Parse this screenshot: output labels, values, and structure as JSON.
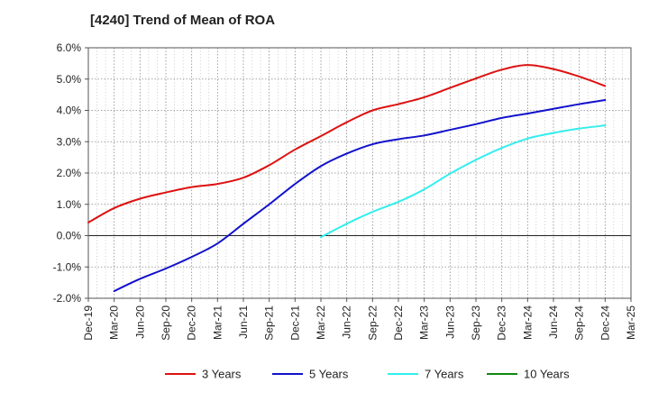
{
  "chart_data": {
    "type": "line",
    "title": "[4240]  Trend of Mean of ROA",
    "xlabel": "",
    "ylabel": "",
    "ylim": [
      -2.0,
      6.0
    ],
    "y_ticks": [
      -2.0,
      -1.0,
      0.0,
      1.0,
      2.0,
      3.0,
      4.0,
      5.0,
      6.0
    ],
    "y_tick_labels": [
      "-2.0%",
      "-1.0%",
      "0.0%",
      "1.0%",
      "2.0%",
      "3.0%",
      "4.0%",
      "5.0%",
      "6.0%"
    ],
    "x_tick_labels": [
      "Dec-19",
      "Mar-20",
      "Jun-20",
      "Sep-20",
      "Dec-20",
      "Mar-21",
      "Jun-21",
      "Sep-21",
      "Dec-21",
      "Mar-22",
      "Jun-22",
      "Sep-22",
      "Dec-22",
      "Mar-23",
      "Jun-23",
      "Sep-23",
      "Dec-23",
      "Mar-24",
      "Jun-24",
      "Sep-24",
      "Dec-24",
      "Mar-25"
    ],
    "grid": true,
    "legend_position": "bottom",
    "series": [
      {
        "name": "3 Years",
        "color": "#dd1111",
        "start_index": 0,
        "values": [
          0.42,
          0.88,
          1.18,
          1.38,
          1.55,
          1.65,
          1.85,
          2.25,
          2.75,
          3.18,
          3.62,
          4.0,
          4.2,
          4.42,
          4.72,
          5.02,
          5.3,
          5.45,
          5.32,
          5.08,
          4.78
        ]
      },
      {
        "name": "5 Years",
        "color": "#1111cc",
        "start_index": 1,
        "values": [
          -1.77,
          -1.38,
          -1.05,
          -0.68,
          -0.25,
          0.38,
          1.0,
          1.65,
          2.22,
          2.62,
          2.92,
          3.08,
          3.2,
          3.38,
          3.56,
          3.76,
          3.9,
          4.05,
          4.2,
          4.33
        ]
      },
      {
        "name": "7 Years",
        "color": "#33eeee",
        "start_index": 9,
        "values": [
          -0.05,
          0.38,
          0.76,
          1.08,
          1.48,
          1.98,
          2.42,
          2.8,
          3.1,
          3.28,
          3.42,
          3.52
        ]
      },
      {
        "name": "10 Years",
        "color": "#118811",
        "start_index": 0,
        "values": []
      }
    ]
  }
}
